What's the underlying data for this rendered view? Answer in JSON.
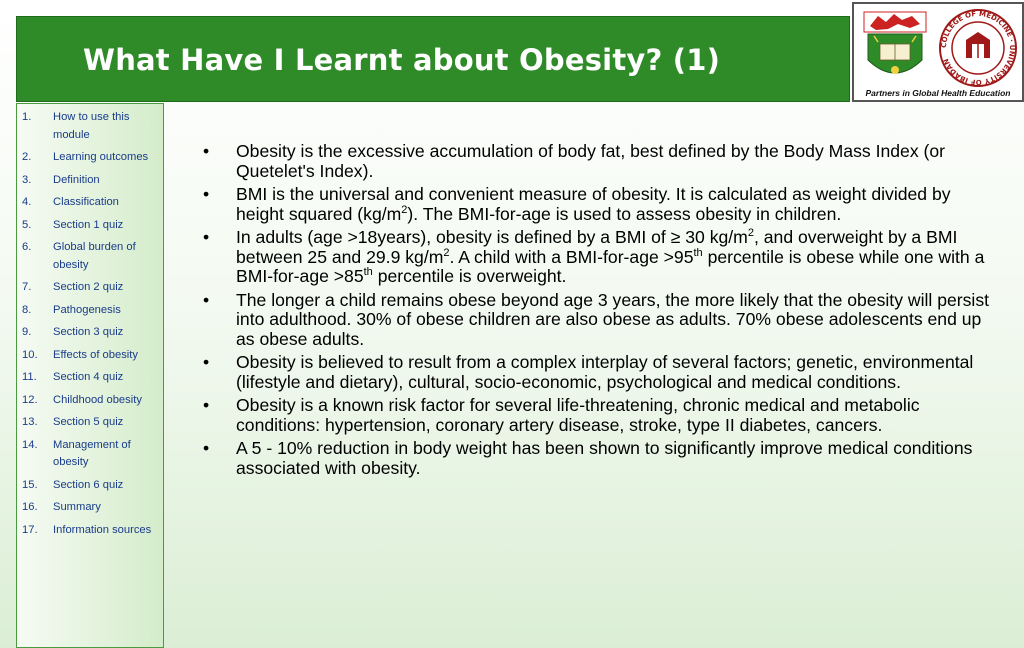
{
  "header": {
    "title": "What Have I Learnt about Obesity? (1)",
    "logo_caption": "Partners in Global Health Education",
    "seal_text": "COLLEGE OF MEDICINE · UNIVERSITY OF IBADAN"
  },
  "sidebar": {
    "items": [
      {
        "num": "1.",
        "label": "How to use this module"
      },
      {
        "num": "2.",
        "label": "Learning outcomes"
      },
      {
        "num": "3.",
        "label": "Definition"
      },
      {
        "num": "4.",
        "label": "Classification"
      },
      {
        "num": "5.",
        "label": "Section 1 quiz"
      },
      {
        "num": "6.",
        "label": "Global burden of obesity"
      },
      {
        "num": "7.",
        "label": "Section 2 quiz"
      },
      {
        "num": "8.",
        "label": "Pathogenesis"
      },
      {
        "num": "9.",
        "label": "Section 3 quiz"
      },
      {
        "num": "10.",
        "label": "Effects of obesity"
      },
      {
        "num": "11.",
        "label": "Section 4 quiz"
      },
      {
        "num": "12.",
        "label": "Childhood obesity"
      },
      {
        "num": "13.",
        "label": "Section 5 quiz"
      },
      {
        "num": "14.",
        "label": "Management of obesity"
      },
      {
        "num": "15.",
        "label": "Section 6 quiz"
      },
      {
        "num": "16.",
        "label": "Summary"
      },
      {
        "num": "17.",
        "label": "Information sources"
      }
    ]
  },
  "content": {
    "b1": "Obesity is the excessive accumulation of body fat, best defined by the Body Mass Index (or Quetelet's Index).",
    "b2_a": "BMI is the universal and convenient measure of obesity. It is calculated as weight divided by height squared (kg/m",
    "b2_sup": "2",
    "b2_b": "). The BMI-for-age is used to assess obesity in children.",
    "b3_a": "In adults (age >18years), obesity is defined by a BMI of ≥ 30 kg/m",
    "b3_sup1": "2",
    "b3_b": ", and overweight by a BMI between 25 and 29.9 kg/m",
    "b3_sup2": "2",
    "b3_c": ". A child with a  BMI-for-age >95",
    "b3_sup3": "th",
    "b3_d": " percentile is obese while one with a BMI-for-age >85",
    "b3_sup4": "th",
    "b3_e": " percentile is overweight.",
    "b4": "The longer a child remains obese beyond age 3 years, the more likely that the obesity will persist into adulthood. 30% of obese children are also obese as adults. 70% obese adolescents end up as obese adults.",
    "b5": "Obesity is believed to result from a complex interplay of several factors; genetic, environmental (lifestyle and dietary), cultural, socio-economic, psychological and medical conditions.",
    "b6": "Obesity is a known risk factor for several life-threatening, chronic medical and metabolic conditions: hypertension, coronary artery disease, stroke, type II diabetes, cancers.",
    "b7": "A 5 - 10% reduction in body weight has been shown to significantly improve medical conditions associated with obesity."
  },
  "colors": {
    "title_bar": "#2e8b28",
    "toc_text": "#1a3c8a",
    "sidebar_border": "#4a9a3f"
  }
}
